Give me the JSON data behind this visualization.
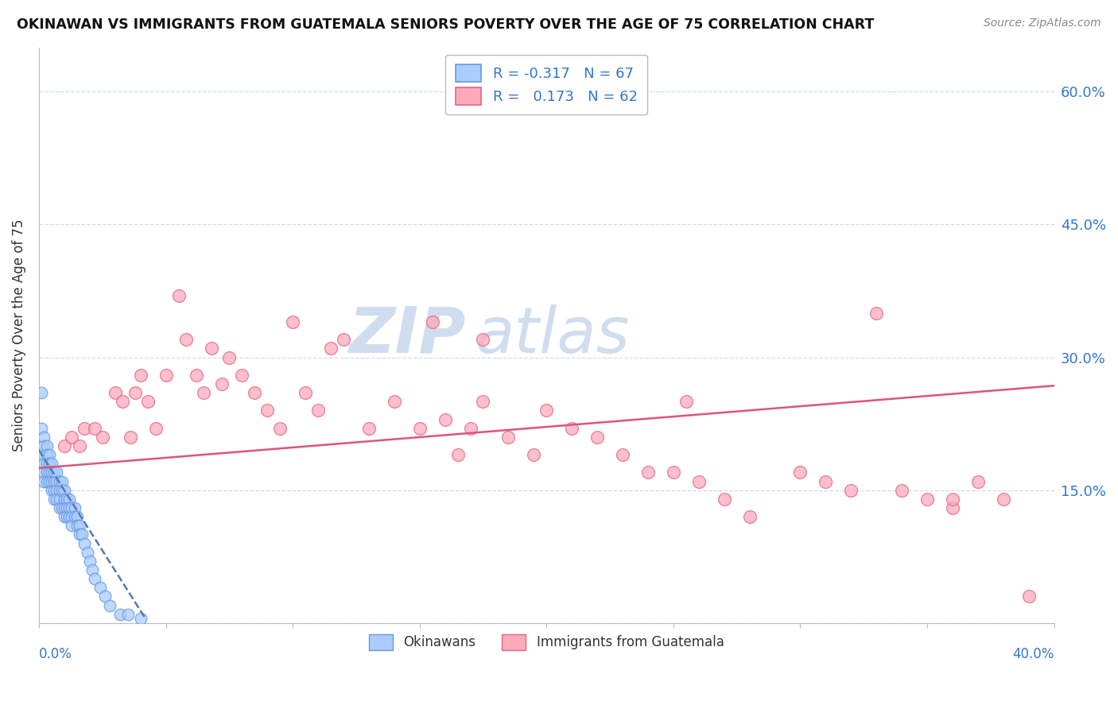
{
  "title": "OKINAWAN VS IMMIGRANTS FROM GUATEMALA SENIORS POVERTY OVER THE AGE OF 75 CORRELATION CHART",
  "source": "Source: ZipAtlas.com",
  "ylabel": "Seniors Poverty Over the Age of 75",
  "xlim": [
    0.0,
    0.4
  ],
  "ylim": [
    0.0,
    0.65
  ],
  "yticks": [
    0.0,
    0.15,
    0.3,
    0.45,
    0.6
  ],
  "ytick_labels": [
    "",
    "15.0%",
    "30.0%",
    "45.0%",
    "60.0%"
  ],
  "color_okinawan_face": "#aaccff",
  "color_okinawan_edge": "#6699dd",
  "color_guatemala_face": "#ffaabb",
  "color_guatemala_edge": "#dd6688",
  "trend_okinawan_color": "#5577bb",
  "trend_guatemala_color": "#dd5577",
  "watermark_color": "#ccddeebb",
  "background_color": "#ffffff",
  "grid_color": "#ccddee",
  "axis_label_color": "#3377cc",
  "title_color": "#111111",
  "okinawan_x": [
    0.001,
    0.001,
    0.001,
    0.002,
    0.002,
    0.002,
    0.002,
    0.002,
    0.003,
    0.003,
    0.003,
    0.003,
    0.003,
    0.004,
    0.004,
    0.004,
    0.004,
    0.005,
    0.005,
    0.005,
    0.005,
    0.006,
    0.006,
    0.006,
    0.006,
    0.007,
    0.007,
    0.007,
    0.007,
    0.008,
    0.008,
    0.008,
    0.008,
    0.009,
    0.009,
    0.009,
    0.01,
    0.01,
    0.01,
    0.01,
    0.011,
    0.011,
    0.011,
    0.012,
    0.012,
    0.012,
    0.013,
    0.013,
    0.013,
    0.014,
    0.014,
    0.015,
    0.015,
    0.016,
    0.016,
    0.017,
    0.018,
    0.019,
    0.02,
    0.021,
    0.022,
    0.024,
    0.026,
    0.028,
    0.032,
    0.035,
    0.04
  ],
  "okinawan_y": [
    0.26,
    0.22,
    0.19,
    0.21,
    0.2,
    0.18,
    0.17,
    0.16,
    0.2,
    0.19,
    0.18,
    0.17,
    0.16,
    0.19,
    0.18,
    0.17,
    0.16,
    0.18,
    0.17,
    0.16,
    0.15,
    0.17,
    0.16,
    0.15,
    0.14,
    0.17,
    0.16,
    0.15,
    0.14,
    0.16,
    0.15,
    0.14,
    0.13,
    0.16,
    0.15,
    0.13,
    0.15,
    0.14,
    0.13,
    0.12,
    0.14,
    0.13,
    0.12,
    0.14,
    0.13,
    0.12,
    0.13,
    0.12,
    0.11,
    0.13,
    0.12,
    0.12,
    0.11,
    0.11,
    0.1,
    0.1,
    0.09,
    0.08,
    0.07,
    0.06,
    0.05,
    0.04,
    0.03,
    0.02,
    0.01,
    0.01,
    0.005
  ],
  "guatemala_x": [
    0.01,
    0.013,
    0.016,
    0.018,
    0.022,
    0.025,
    0.03,
    0.033,
    0.036,
    0.038,
    0.04,
    0.043,
    0.046,
    0.05,
    0.055,
    0.058,
    0.062,
    0.065,
    0.068,
    0.072,
    0.075,
    0.08,
    0.085,
    0.09,
    0.095,
    0.1,
    0.105,
    0.11,
    0.115,
    0.12,
    0.13,
    0.14,
    0.15,
    0.16,
    0.165,
    0.17,
    0.175,
    0.185,
    0.195,
    0.2,
    0.21,
    0.22,
    0.23,
    0.24,
    0.25,
    0.26,
    0.27,
    0.28,
    0.3,
    0.31,
    0.32,
    0.33,
    0.34,
    0.35,
    0.36,
    0.37,
    0.38,
    0.39,
    0.155,
    0.175,
    0.255,
    0.36
  ],
  "guatemala_y": [
    0.2,
    0.21,
    0.2,
    0.22,
    0.22,
    0.21,
    0.26,
    0.25,
    0.21,
    0.26,
    0.28,
    0.25,
    0.22,
    0.28,
    0.37,
    0.32,
    0.28,
    0.26,
    0.31,
    0.27,
    0.3,
    0.28,
    0.26,
    0.24,
    0.22,
    0.34,
    0.26,
    0.24,
    0.31,
    0.32,
    0.22,
    0.25,
    0.22,
    0.23,
    0.19,
    0.22,
    0.25,
    0.21,
    0.19,
    0.24,
    0.22,
    0.21,
    0.19,
    0.17,
    0.17,
    0.16,
    0.14,
    0.12,
    0.17,
    0.16,
    0.15,
    0.35,
    0.15,
    0.14,
    0.13,
    0.16,
    0.14,
    0.03,
    0.34,
    0.32,
    0.25,
    0.14
  ],
  "trend_ok_x0": 0.0,
  "trend_ok_x1": 0.042,
  "trend_ok_y0": 0.195,
  "trend_ok_y1": 0.005,
  "trend_gt_x0": 0.0,
  "trend_gt_x1": 0.4,
  "trend_gt_y0": 0.175,
  "trend_gt_y1": 0.268
}
